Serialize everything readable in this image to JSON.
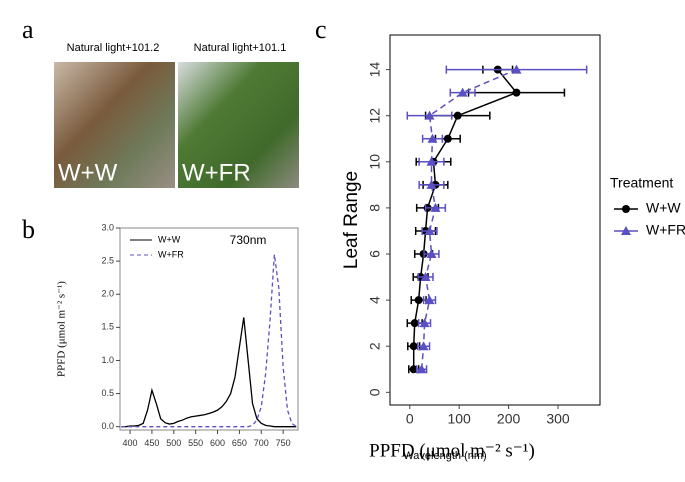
{
  "photos": {
    "letter": "a",
    "panels": [
      {
        "caption": "Natural light+101.2",
        "label": "W+W"
      },
      {
        "caption": "Natural light+101.1",
        "label": "W+FR"
      }
    ]
  },
  "chart_data": [
    {
      "type": "line",
      "letter": "b",
      "xlabel": "Wavelength (nm)",
      "ylabel": "PPFD (μmol m⁻² s⁻¹)",
      "annotation": "730nm",
      "legend": "upper left",
      "x": [
        380,
        390,
        400,
        410,
        420,
        430,
        440,
        450,
        460,
        470,
        480,
        490,
        500,
        510,
        520,
        530,
        540,
        550,
        560,
        570,
        580,
        590,
        600,
        610,
        620,
        630,
        640,
        650,
        660,
        670,
        680,
        690,
        700,
        710,
        720,
        730,
        740,
        750,
        760,
        770,
        780
      ],
      "series": [
        {
          "name": "W+W",
          "color": "#000000",
          "dash": false,
          "values": [
            0,
            0,
            0.01,
            0.01,
            0.02,
            0.05,
            0.25,
            0.55,
            0.35,
            0.12,
            0.06,
            0.04,
            0.05,
            0.08,
            0.1,
            0.13,
            0.15,
            0.16,
            0.17,
            0.18,
            0.2,
            0.22,
            0.25,
            0.3,
            0.38,
            0.5,
            0.75,
            1.2,
            1.65,
            1.0,
            0.35,
            0.12,
            0.05,
            0.02,
            0.01,
            0,
            0,
            0,
            0,
            0,
            0
          ]
        },
        {
          "name": "W+FR",
          "color": "#5b4fc4",
          "dash": true,
          "values": [
            0,
            0,
            0,
            0,
            0,
            0,
            0,
            0,
            0,
            0,
            0,
            0,
            0,
            0,
            0,
            0,
            0,
            0,
            0,
            0,
            0,
            0,
            0,
            0,
            0,
            0,
            0,
            0,
            0,
            0,
            0.02,
            0.1,
            0.3,
            0.8,
            1.6,
            2.6,
            2.1,
            0.9,
            0.25,
            0.05,
            0
          ]
        }
      ],
      "xlim": [
        377,
        784
      ],
      "xticks": [
        400,
        450,
        500,
        550,
        600,
        650,
        700,
        750
      ],
      "ylim": [
        -0.05,
        3.0
      ],
      "yticks": [
        {
          "value": 0,
          "label": "0.0"
        },
        0.5,
        {
          "value": 1,
          "label": "1.0"
        },
        1.5,
        {
          "value": 2,
          "label": "2.0"
        },
        2.5,
        {
          "value": 3,
          "label": "3.0"
        }
      ]
    },
    {
      "type": "scatter",
      "letter": "c",
      "xlabel": "PPFD (μmol m⁻² s⁻¹)",
      "ylabel": "Leaf Range",
      "legend_title": "Treatment",
      "legend": "right",
      "series": [
        {
          "name": "W+W",
          "color": "#000000",
          "marker": "circle",
          "dash": false,
          "y": [
            1,
            2,
            3,
            4,
            5,
            6,
            7,
            8,
            9,
            10,
            11,
            12,
            13,
            14
          ],
          "x": [
            8,
            8,
            10,
            18,
            22,
            28,
            32,
            36,
            52,
            48,
            77,
            97,
            216,
            178
          ],
          "xerr": [
            10,
            12,
            15,
            15,
            15,
            18,
            20,
            22,
            25,
            35,
            25,
            65,
            97,
            30
          ]
        },
        {
          "name": "W+FR",
          "color": "#5b4fc4",
          "marker": "triangle",
          "dash": true,
          "y": [
            1,
            2,
            3,
            4,
            5,
            6,
            7,
            8,
            9,
            10,
            11,
            12,
            13,
            14
          ],
          "x": [
            24,
            28,
            30,
            40,
            32,
            44,
            40,
            52,
            44,
            44,
            46,
            40,
            107,
            216
          ],
          "xerr": [
            10,
            12,
            12,
            12,
            15,
            15,
            15,
            20,
            25,
            25,
            20,
            45,
            25,
            142
          ]
        }
      ],
      "xlim": [
        -40,
        385
      ],
      "xticks": [
        0,
        100,
        200,
        300
      ],
      "ylim": [
        -0.55,
        15.5
      ],
      "yticks": [
        0,
        2,
        4,
        6,
        8,
        10,
        12,
        14
      ]
    }
  ]
}
